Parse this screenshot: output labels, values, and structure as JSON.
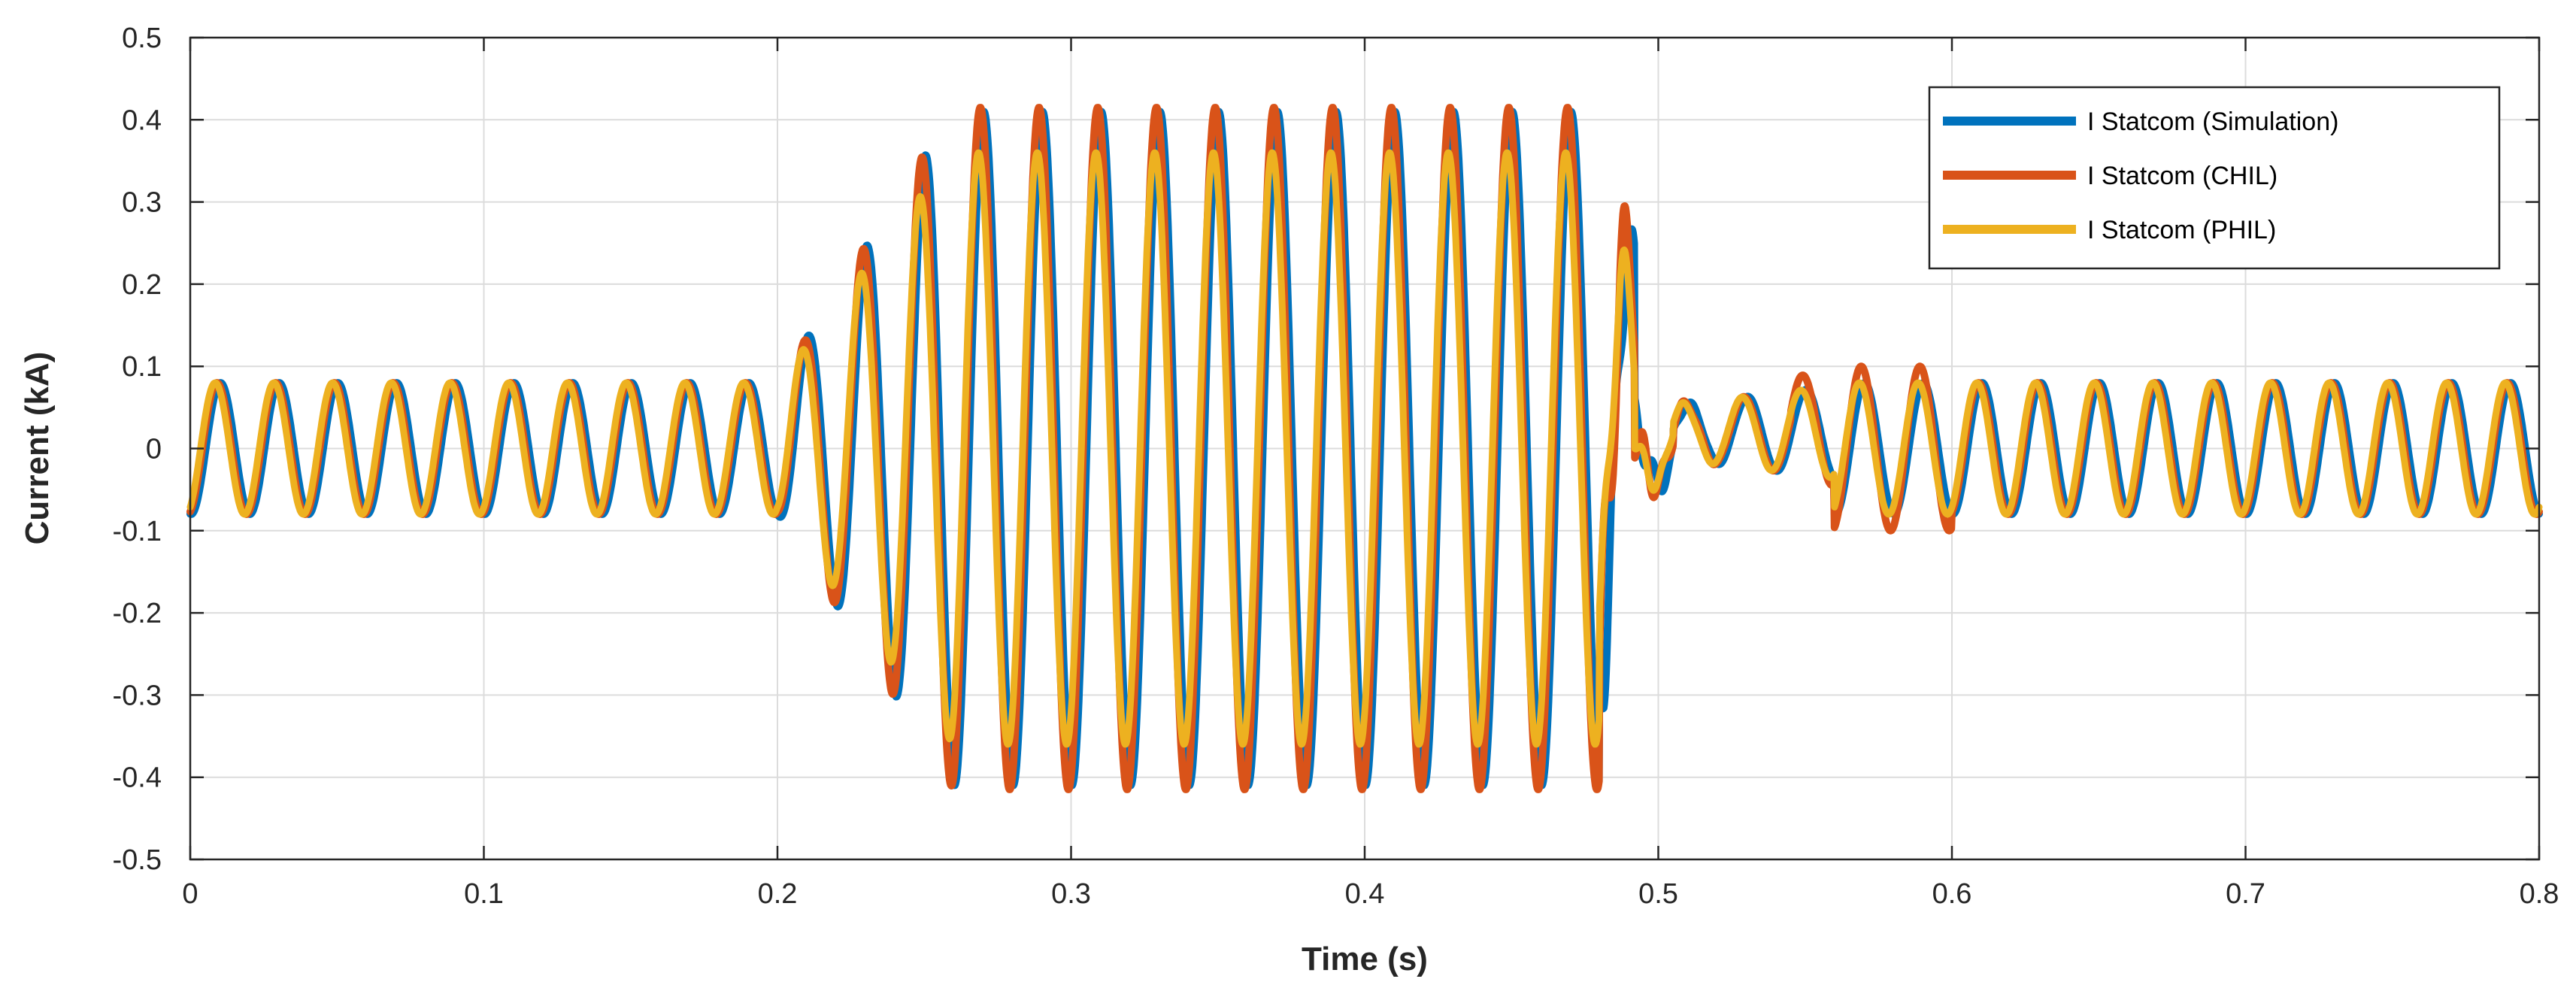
{
  "chart_data": {
    "type": "line",
    "title": "",
    "xlabel": "Time (s)",
    "ylabel": "Current (kA)",
    "xlim": [
      0,
      0.8
    ],
    "ylim": [
      -0.5,
      0.5
    ],
    "grid": true,
    "legend_position": "top-right",
    "x_ticks": [
      0,
      0.1,
      0.2,
      0.3,
      0.4,
      0.5,
      0.6,
      0.7,
      0.8
    ],
    "x_tick_labels": [
      "0",
      "0.1",
      "0.2",
      "0.3",
      "0.4",
      "0.5",
      "0.6",
      "0.7",
      "0.8"
    ],
    "y_ticks": [
      -0.5,
      -0.4,
      -0.3,
      -0.2,
      -0.1,
      0,
      0.1,
      0.2,
      0.3,
      0.4,
      0.5
    ],
    "y_tick_labels": [
      "-0.5",
      "-0.4",
      "-0.3",
      "-0.2",
      "-0.1",
      "0",
      "0.1",
      "0.2",
      "0.3",
      "0.4",
      "0.5"
    ],
    "signal": {
      "frequency_hz": 50,
      "pre_fault_amplitude": 0.08,
      "fault_start_s": 0.2,
      "fault_end_s": 0.48,
      "fault_amplitude": 0.4,
      "recovery_end_s": 0.56,
      "post_fault_amplitude": 0.08
    },
    "series": [
      {
        "name": "I Statcom (Simulation)",
        "color": "#0072BD",
        "phase_lag_s": 0.0018,
        "fault_amplitude": 0.41,
        "peak_amplitude": 0.43,
        "trough_amplitude": -0.42
      },
      {
        "name": "I Statcom (CHIL)",
        "color": "#D95319",
        "phase_lag_s": 0.0006,
        "fault_amplitude": 0.415,
        "peak_amplitude": 0.42,
        "trough_amplitude": -0.42
      },
      {
        "name": "I Statcom (PHIL)",
        "color": "#EDB120",
        "phase_lag_s": 0.0,
        "fault_amplitude": 0.36,
        "peak_amplitude": 0.36,
        "trough_amplitude": -0.36
      }
    ]
  }
}
